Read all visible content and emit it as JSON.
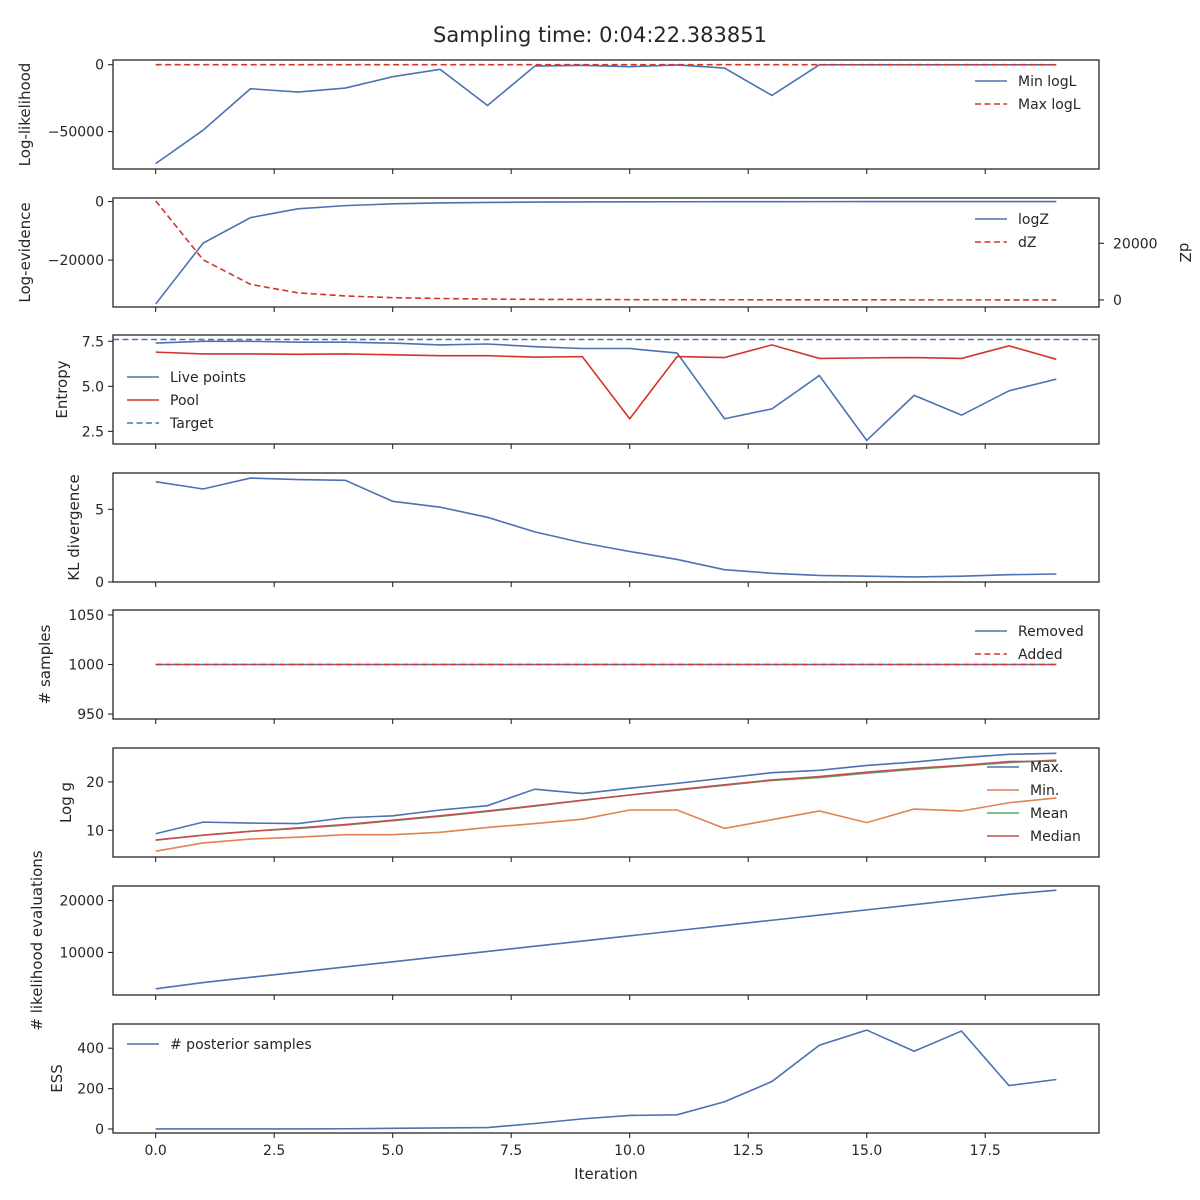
{
  "title": "Sampling time: 0:04:22.383851",
  "xlabel": "Iteration",
  "x_ticks": [
    "0.0",
    "2.5",
    "5.0",
    "7.5",
    "10.0",
    "12.5",
    "15.0",
    "17.5"
  ],
  "colors": {
    "blue": "#4c72b0",
    "red": "#d1352b",
    "orange": "#dd8452",
    "green": "#55a868",
    "darkred": "#c44e52",
    "text": "#262626",
    "axis": "#262626"
  },
  "chart_data": [
    {
      "type": "line",
      "ylabel": "Log-likelihood",
      "ylim": [
        -78000,
        3500
      ],
      "yticks": [
        {
          "v": 0,
          "label": "0"
        },
        {
          "v": -50000,
          "label": "−50000"
        }
      ],
      "x": [
        0,
        1,
        2,
        3,
        4,
        5,
        6,
        7,
        8,
        9,
        10,
        11,
        12,
        13,
        14,
        15,
        16,
        17,
        18,
        19
      ],
      "series": [
        {
          "name": "Min logL",
          "color": "#4c72b0",
          "dash": false,
          "values": [
            -74000,
            -49000,
            -18000,
            -20500,
            -17500,
            -9000,
            -3500,
            -30500,
            -1000,
            -500,
            -1500,
            -200,
            -2500,
            -23000,
            -100,
            -100,
            -100,
            -100,
            -100,
            -100
          ]
        },
        {
          "name": "Max logL",
          "color": "#d1352b",
          "dash": true,
          "values": [
            0,
            0,
            0,
            0,
            0,
            0,
            0,
            0,
            0,
            0,
            0,
            0,
            0,
            0,
            0,
            0,
            0,
            0,
            0,
            0
          ]
        }
      ],
      "legend": "top-right"
    },
    {
      "type": "line",
      "ylabel": "Log-evidence",
      "ylabel_right": "dZ",
      "ylim": [
        -36000,
        1200
      ],
      "yticks": [
        {
          "v": 0,
          "label": "0"
        },
        {
          "v": -20000,
          "label": "−20000"
        }
      ],
      "ylim_right": [
        -2500,
        36000
      ],
      "yticks_right": [
        {
          "v": 0,
          "label": "0"
        },
        {
          "v": 20000,
          "label": "20000"
        }
      ],
      "x": [
        0,
        1,
        2,
        3,
        4,
        5,
        6,
        7,
        8,
        9,
        10,
        11,
        12,
        13,
        14,
        15,
        16,
        17,
        18,
        19
      ],
      "series": [
        {
          "name": "logZ",
          "color": "#4c72b0",
          "dash": false,
          "axis": "left",
          "values": [
            -35000,
            -14200,
            -5500,
            -2500,
            -1400,
            -800,
            -500,
            -300,
            -200,
            -150,
            -100,
            -80,
            -60,
            -50,
            -40,
            -30,
            -20,
            -15,
            -10,
            -5
          ]
        },
        {
          "name": "dZ",
          "color": "#d1352b",
          "dash": true,
          "axis": "right",
          "values": [
            35000,
            14200,
            5500,
            2500,
            1400,
            800,
            500,
            300,
            200,
            150,
            100,
            80,
            60,
            50,
            40,
            30,
            20,
            15,
            10,
            5
          ]
        }
      ],
      "legend": "top-right"
    },
    {
      "type": "line",
      "ylabel": "Entropy",
      "ylim": [
        1.8,
        7.85
      ],
      "yticks": [
        {
          "v": 2.5,
          "label": "2.5"
        },
        {
          "v": 5.0,
          "label": "5.0"
        },
        {
          "v": 7.5,
          "label": "7.5"
        }
      ],
      "x": [
        0,
        1,
        2,
        3,
        4,
        5,
        6,
        7,
        8,
        9,
        10,
        11,
        12,
        13,
        14,
        15,
        16,
        17,
        18,
        19
      ],
      "series": [
        {
          "name": "Live points",
          "color": "#4c72b0",
          "dash": false,
          "values": [
            7.4,
            7.5,
            7.5,
            7.45,
            7.45,
            7.4,
            7.3,
            7.35,
            7.2,
            7.1,
            7.1,
            6.85,
            3.2,
            3.75,
            5.6,
            2.0,
            4.5,
            3.4,
            4.75,
            5.4
          ]
        },
        {
          "name": "Pool",
          "color": "#d1352b",
          "dash": false,
          "values": [
            6.9,
            6.8,
            6.8,
            6.78,
            6.8,
            6.75,
            6.7,
            6.7,
            6.62,
            6.65,
            3.2,
            6.65,
            6.6,
            7.3,
            6.55,
            6.58,
            6.6,
            6.55,
            7.25,
            6.5
          ]
        },
        {
          "name": "Target",
          "color": "#4c72b0",
          "dash": true,
          "hline": 7.6
        }
      ],
      "legend": "center-left"
    },
    {
      "type": "line",
      "ylabel": "KL divergence",
      "ylim": [
        0,
        7.5
      ],
      "yticks": [
        {
          "v": 0,
          "label": "0"
        },
        {
          "v": 5,
          "label": "5"
        }
      ],
      "x": [
        0,
        1,
        2,
        3,
        4,
        5,
        6,
        7,
        8,
        9,
        10,
        11,
        12,
        13,
        14,
        15,
        16,
        17,
        18,
        19
      ],
      "series": [
        {
          "name": "",
          "color": "#4c72b0",
          "dash": false,
          "values": [
            6.9,
            6.4,
            7.15,
            7.05,
            7.0,
            5.55,
            5.15,
            4.45,
            3.45,
            2.7,
            2.1,
            1.55,
            0.85,
            0.6,
            0.45,
            0.4,
            0.35,
            0.4,
            0.5,
            0.55
          ]
        }
      ],
      "legend": "none"
    },
    {
      "type": "line",
      "ylabel": "# samples",
      "ylim": [
        945,
        1055
      ],
      "yticks": [
        {
          "v": 950,
          "label": "950"
        },
        {
          "v": 1000,
          "label": "1000"
        },
        {
          "v": 1050,
          "label": "1050"
        }
      ],
      "x": [
        0,
        1,
        2,
        3,
        4,
        5,
        6,
        7,
        8,
        9,
        10,
        11,
        12,
        13,
        14,
        15,
        16,
        17,
        18,
        19
      ],
      "series": [
        {
          "name": "Removed",
          "color": "#4c72b0",
          "dash": false,
          "values": [
            1000,
            1000,
            1000,
            1000,
            1000,
            1000,
            1000,
            1000,
            1000,
            1000,
            1000,
            1000,
            1000,
            1000,
            1000,
            1000,
            1000,
            1000,
            1000,
            1000
          ]
        },
        {
          "name": "Added",
          "color": "#d1352b",
          "dash": true,
          "values": [
            1000,
            1000,
            1000,
            1000,
            1000,
            1000,
            1000,
            1000,
            1000,
            1000,
            1000,
            1000,
            1000,
            1000,
            1000,
            1000,
            1000,
            1000,
            1000,
            1000
          ]
        }
      ],
      "legend": "top-right"
    },
    {
      "type": "line",
      "ylabel": "Log g",
      "ylim": [
        4.5,
        27
      ],
      "yticks": [
        {
          "v": 10,
          "label": "10"
        },
        {
          "v": 20,
          "label": "20"
        }
      ],
      "x": [
        0,
        1,
        2,
        3,
        4,
        5,
        6,
        7,
        8,
        9,
        10,
        11,
        12,
        13,
        14,
        15,
        16,
        17,
        18,
        19
      ],
      "series": [
        {
          "name": "Max.",
          "color": "#4c72b0",
          "dash": false,
          "values": [
            9.3,
            11.7,
            11.5,
            11.4,
            12.6,
            13.0,
            14.2,
            15.1,
            18.5,
            17.6,
            18.7,
            19.7,
            20.8,
            21.9,
            22.4,
            23.4,
            24.1,
            25.0,
            25.7,
            25.9
          ]
        },
        {
          "name": "Min.",
          "color": "#dd8452",
          "dash": false,
          "values": [
            5.7,
            7.4,
            8.2,
            8.6,
            9.1,
            9.1,
            9.6,
            10.6,
            11.4,
            12.3,
            14.2,
            14.2,
            10.4,
            12.2,
            14.0,
            11.6,
            14.4,
            14.0,
            15.7,
            16.7
          ]
        },
        {
          "name": "Mean",
          "color": "#55a868",
          "dash": false,
          "values": [
            8.0,
            9.0,
            9.8,
            10.4,
            11.1,
            12.0,
            12.9,
            13.9,
            15.0,
            16.2,
            17.3,
            18.3,
            19.3,
            20.3,
            20.9,
            21.8,
            22.6,
            23.3,
            24.0,
            24.5
          ]
        },
        {
          "name": "Median",
          "color": "#c44e52",
          "dash": false,
          "values": [
            8.0,
            9.0,
            9.8,
            10.5,
            11.2,
            12.1,
            13.0,
            14.0,
            15.1,
            16.2,
            17.3,
            18.4,
            19.4,
            20.4,
            21.1,
            22.0,
            22.8,
            23.4,
            24.2,
            24.3
          ]
        }
      ],
      "legend": "bottom-right"
    },
    {
      "type": "line",
      "ylabel": "# likelihood evaluations",
      "ylim": [
        1800,
        22800
      ],
      "yticks": [
        {
          "v": 10000,
          "label": "10000"
        },
        {
          "v": 20000,
          "label": "20000"
        }
      ],
      "x": [
        0,
        1,
        2,
        3,
        4,
        5,
        6,
        7,
        8,
        9,
        10,
        11,
        12,
        13,
        14,
        15,
        16,
        17,
        18,
        19
      ],
      "series": [
        {
          "name": "",
          "color": "#4c72b0",
          "dash": false,
          "values": [
            3000,
            4200,
            5200,
            6200,
            7200,
            8200,
            9200,
            10200,
            11200,
            12200,
            13200,
            14200,
            15200,
            16200,
            17200,
            18200,
            19200,
            20200,
            21200,
            22000
          ]
        }
      ],
      "legend": "none"
    },
    {
      "type": "line",
      "ylabel": "ESS",
      "ylim": [
        -20,
        520
      ],
      "yticks": [
        {
          "v": 0,
          "label": "0"
        },
        {
          "v": 200,
          "label": "200"
        },
        {
          "v": 400,
          "label": "400"
        }
      ],
      "x": [
        0,
        1,
        2,
        3,
        4,
        5,
        6,
        7,
        8,
        9,
        10,
        11,
        12,
        13,
        14,
        15,
        16,
        17,
        18,
        19
      ],
      "series": [
        {
          "name": "# posterior samples",
          "color": "#4c72b0",
          "dash": false,
          "values": [
            0,
            0,
            0,
            0,
            1,
            3,
            5,
            7,
            27,
            50,
            67,
            70,
            135,
            235,
            415,
            490,
            385,
            485,
            215,
            245
          ]
        }
      ],
      "legend": "top-left"
    }
  ]
}
